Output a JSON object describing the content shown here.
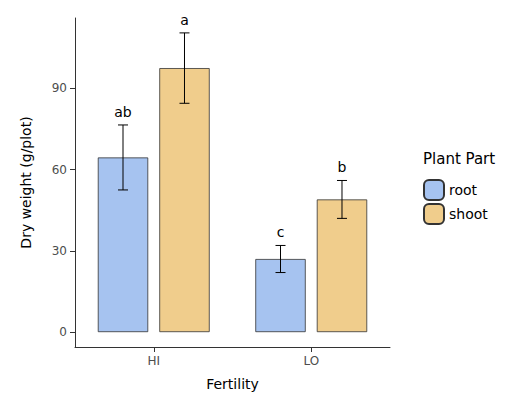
{
  "chart_data": {
    "type": "bar",
    "x_label": "Fertility",
    "y_label": "Dry weight (g/plot)",
    "legend_title": "Plant Part",
    "categories": [
      "HI",
      "LO"
    ],
    "series": [
      {
        "name": "root",
        "color": "#a6c3f0",
        "values": [
          64.5,
          27
        ],
        "errors": [
          12,
          5
        ],
        "letters": [
          "ab",
          "c"
        ]
      },
      {
        "name": "shoot",
        "color": "#f0cd8c",
        "values": [
          97.5,
          49
        ],
        "errors": [
          13,
          7
        ],
        "letters": [
          "a",
          "b"
        ]
      }
    ],
    "ylim": [
      -5.5,
      116
    ],
    "yticks": [
      0,
      30,
      60,
      90
    ],
    "grid": false,
    "legend": "right"
  }
}
